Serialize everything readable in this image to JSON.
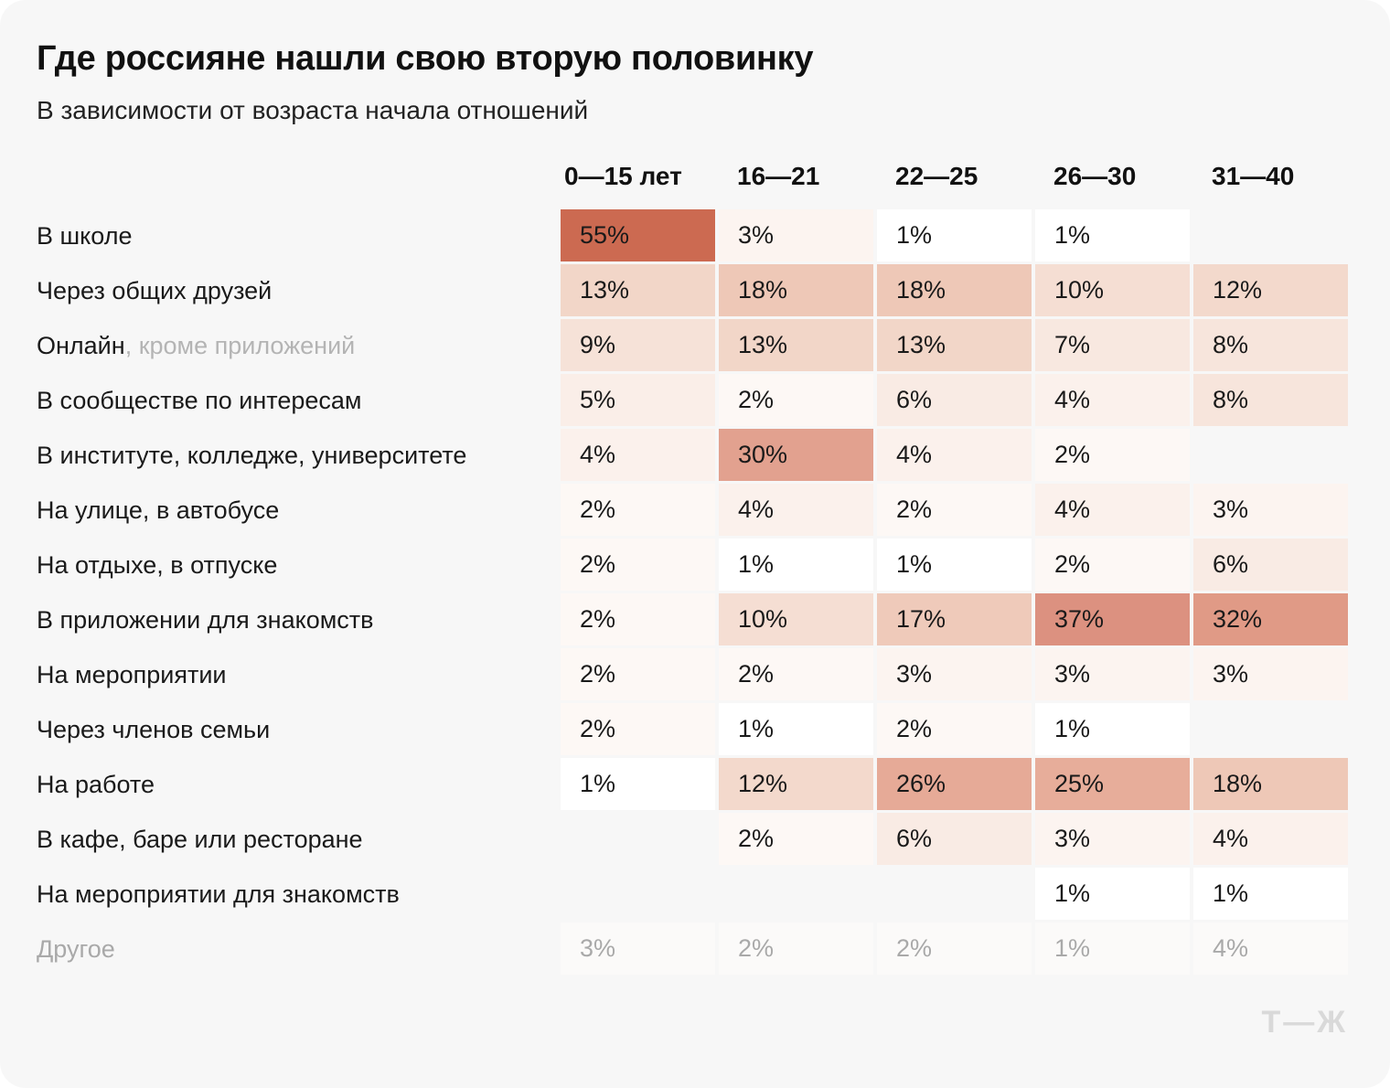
{
  "title": "Где россияне нашли свою вторую половинку",
  "subtitle": "В зависимости от возраста начала отношений",
  "logo": "Т—Ж",
  "colors": {
    "card_bg": "#f7f7f7",
    "page_bg": "#ffffff",
    "text": "#1a1a1a",
    "muted_text": "#a9a9a9",
    "label_suffix": "#b4b4b4",
    "logo": "#d9d9d9",
    "accent_max": "#cc6a51"
  },
  "chart_data": {
    "type": "heatmap",
    "value_suffix": "%",
    "columns": [
      "0—15 лет",
      "16—21",
      "22—25",
      "26—30",
      "31—40"
    ],
    "rows": [
      {
        "label": "В школе",
        "values": [
          55,
          3,
          1,
          1,
          null
        ]
      },
      {
        "label": "Через общих друзей",
        "values": [
          13,
          18,
          18,
          10,
          12
        ]
      },
      {
        "label": "Онлайн",
        "label_suffix": ", кроме приложений",
        "values": [
          9,
          13,
          13,
          7,
          8
        ]
      },
      {
        "label": "В сообществе по интересам",
        "values": [
          5,
          2,
          6,
          4,
          8
        ]
      },
      {
        "label": "В институте, колледже, университете",
        "values": [
          4,
          30,
          4,
          2,
          null
        ]
      },
      {
        "label": "На улице, в автобусе",
        "values": [
          2,
          4,
          2,
          4,
          3
        ]
      },
      {
        "label": "На отдыхе, в отпуске",
        "values": [
          2,
          1,
          1,
          2,
          6
        ]
      },
      {
        "label": "В приложении для знакомств",
        "values": [
          2,
          10,
          17,
          37,
          32
        ]
      },
      {
        "label": "На мероприятии",
        "values": [
          2,
          2,
          3,
          3,
          3
        ]
      },
      {
        "label": "Через членов семьи",
        "values": [
          2,
          1,
          2,
          1,
          null
        ]
      },
      {
        "label": "На работе",
        "values": [
          1,
          12,
          26,
          25,
          18
        ]
      },
      {
        "label": "В кафе, баре или ресторане",
        "values": [
          null,
          2,
          6,
          3,
          4
        ]
      },
      {
        "label": "На мероприятии для знакомств",
        "values": [
          null,
          null,
          null,
          1,
          1
        ]
      },
      {
        "label": "Другое",
        "values": [
          3,
          2,
          2,
          1,
          4
        ],
        "muted": true
      }
    ],
    "muted_cell_bg": "#fbfaf9",
    "heat_colors": {
      "1": "#ffffff",
      "2": "#fdf8f5",
      "3": "#fcf4f0",
      "4": "#fbf1ec",
      "5": "#faeee8",
      "6": "#f9ebe4",
      "7": "#f8e8e0",
      "8": "#f7e5dc",
      "9": "#f6e2d8",
      "10": "#f5ded3",
      "12": "#f3d9cc",
      "13": "#f2d6c8",
      "17": "#efcaba",
      "18": "#eec8b7",
      "25": "#e7ad9a",
      "26": "#e6aa97",
      "30": "#e2a18f",
      "32": "#e09a86",
      "37": "#dc9180",
      "55": "#cc6a51"
    },
    "legend_position": "none",
    "grid": false
  }
}
